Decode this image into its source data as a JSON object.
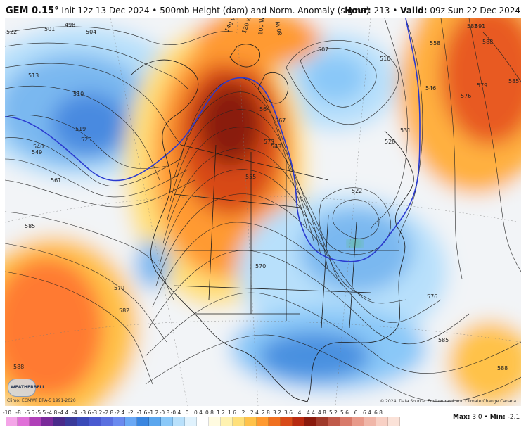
{
  "header": {
    "model": "GEM 0.15°",
    "init": "Init 12z 13 Dec 2024",
    "product": "500mb Height (dam) and Norm. Anomaly (sigma)",
    "hour_label": "Hour:",
    "hour_value": "213",
    "valid_label": "Valid:",
    "valid_value": "09z Sun 22 Dec 2024"
  },
  "map": {
    "contour_labels": [
      {
        "text": "522"
      },
      {
        "text": "501"
      },
      {
        "text": "498"
      },
      {
        "text": "504"
      },
      {
        "text": "513"
      },
      {
        "text": "510"
      },
      {
        "text": "519"
      },
      {
        "text": "525"
      },
      {
        "text": "540"
      },
      {
        "text": "549"
      },
      {
        "text": "561"
      },
      {
        "text": "585"
      },
      {
        "text": "579"
      },
      {
        "text": "582"
      },
      {
        "text": "588"
      },
      {
        "text": "555"
      },
      {
        "text": "570"
      },
      {
        "text": "564"
      },
      {
        "text": "567"
      },
      {
        "text": "573"
      },
      {
        "text": "576"
      },
      {
        "text": "543"
      },
      {
        "text": "522"
      },
      {
        "text": "516"
      },
      {
        "text": "507"
      },
      {
        "text": "528"
      },
      {
        "text": "546"
      },
      {
        "text": "531"
      },
      {
        "text": "558"
      },
      {
        "text": "591"
      },
      {
        "text": "588"
      },
      {
        "text": "582"
      },
      {
        "text": "585"
      },
      {
        "text": "576"
      },
      {
        "text": "579"
      },
      {
        "text": "585"
      },
      {
        "text": "588"
      }
    ],
    "degree_labels": [
      "140 W",
      "120 W",
      "100 W",
      "80 W"
    ],
    "climo_note": "Climo: ECMWF ERA-5 1991-2020",
    "copyright": "© 2024. Data Source: Environment and Climate Change Canada.",
    "logo_text": "WEATHERBELL"
  },
  "colorbar": {
    "labels": [
      "-10",
      "-8",
      "-6.5",
      "-5.5",
      "-4.8",
      "-4.4",
      "-4",
      "-3.6",
      "-3.2",
      "-2.8",
      "-2.4",
      "-2",
      "-1.6",
      "-1.2",
      "-0.8",
      "-0.4",
      "0",
      "0.4",
      "0.8",
      "1.2",
      "1.6",
      "2",
      "2.4",
      "2.8",
      "3.2",
      "3.6",
      "4",
      "4.4",
      "4.8",
      "5.2",
      "5.6",
      "6",
      "6.4",
      "6.8"
    ],
    "colors": [
      "#f4a5e8",
      "#e070d8",
      "#b040b8",
      "#7a2a9a",
      "#4a2a8a",
      "#3a3a9a",
      "#3a4ab8",
      "#4a5ad0",
      "#5a70e0",
      "#6a8aef",
      "#6aa8f5",
      "#3a86e0",
      "#5aa6ee",
      "#8ac8f8",
      "#b8e0fb",
      "#e0f2fd",
      "#ffffff",
      "#fffbe0",
      "#fff2b0",
      "#ffe07a",
      "#ffc24a",
      "#ff9a30",
      "#f07020",
      "#d84a18",
      "#b82a10",
      "#8a1a0c",
      "#a03a2a",
      "#c05a4a",
      "#d87a6a",
      "#e89a8a",
      "#f0b6a8",
      "#f8d0c4",
      "#fbe2d8"
    ],
    "max_label": "Max:",
    "max_value": "3.0",
    "min_label": "Min:",
    "min_value": "-2.1",
    "palette": {
      "strong_pos": "#8a1a0c",
      "pos": "#d84a18",
      "mild_pos": "#ff9a30",
      "weak_pos": "#ffe07a",
      "neutral": "#f2f4f7",
      "weak_neg": "#b8e0fb",
      "neg": "#5aa6ee",
      "strong_neg": "#3a5ad0",
      "green": "#4ac44a",
      "contour": "#222222",
      "highlight_contour": "#2a3ad0"
    }
  }
}
